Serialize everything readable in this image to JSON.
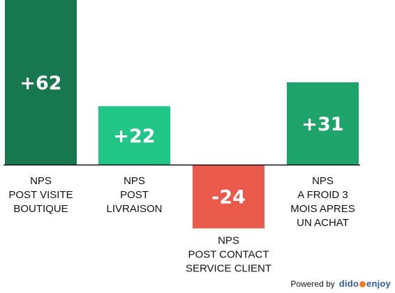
{
  "chart_data": {
    "type": "bar",
    "categories": [
      [
        "NPS",
        "POST VISITE",
        "BOUTIQUE"
      ],
      [
        "NPS",
        "POST",
        "LIVRAISON"
      ],
      [
        "NPS",
        "POST CONTACT",
        "SERVICE CLIENT"
      ],
      [
        "NPS",
        "A FROID 3",
        "MOIS APRES",
        "UN ACHAT"
      ]
    ],
    "values": [
      62,
      22,
      -24,
      31
    ],
    "value_labels": [
      "+62",
      "+22",
      "-24",
      "+31"
    ],
    "colors": [
      "#17784f",
      "#21c586",
      "#ea5a4a",
      "#1ea36a"
    ],
    "baseline_color": "#111111",
    "ylim": [
      -24,
      62
    ]
  },
  "footer": {
    "powered_by": "Powered by",
    "brand_left": "dido",
    "brand_right": "enjoy"
  }
}
